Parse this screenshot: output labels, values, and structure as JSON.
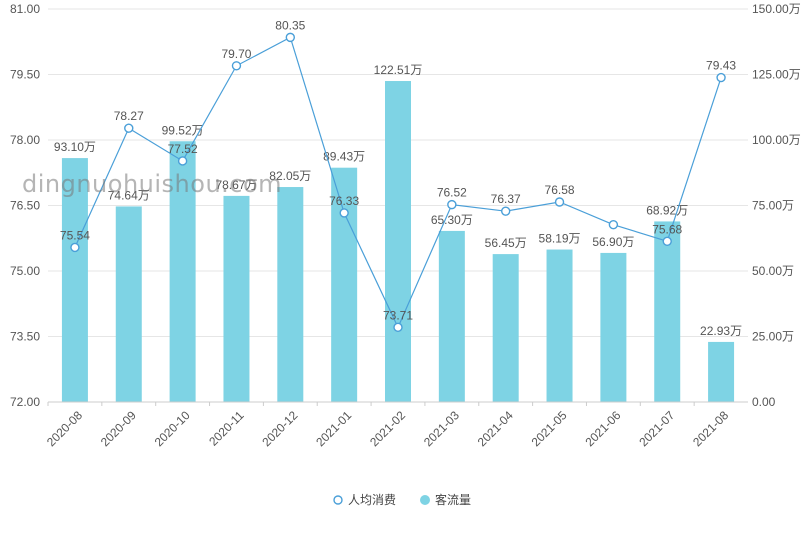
{
  "chart_data": {
    "type": "bar+line",
    "categories": [
      "2020-08",
      "2020-09",
      "2020-10",
      "2020-11",
      "2020-12",
      "2021-01",
      "2021-02",
      "2021-03",
      "2021-04",
      "2021-05",
      "2021-06",
      "2021-07",
      "2021-08"
    ],
    "series": [
      {
        "name": "人均消费",
        "type": "line",
        "axis": "left",
        "values": [
          75.54,
          78.27,
          77.52,
          79.7,
          80.35,
          76.33,
          73.71,
          76.52,
          76.37,
          76.58,
          76.06,
          75.68,
          79.43
        ],
        "labels": [
          "75.54",
          "78.27",
          "77.52",
          "79.70",
          "80.35",
          "76.33",
          "73.71",
          "76.52",
          "76.37",
          "76.58",
          "",
          "75.68",
          "79.43"
        ],
        "color": "#4a9fd8"
      },
      {
        "name": "客流量",
        "type": "bar",
        "axis": "right",
        "values": [
          93.1,
          74.64,
          99.52,
          78.67,
          82.05,
          89.43,
          122.51,
          65.3,
          56.45,
          58.19,
          56.9,
          68.92,
          22.93
        ],
        "labels": [
          "93.10万",
          "74.64万",
          "99.52万",
          "78.67万",
          "82.05万",
          "89.43万",
          "122.51万",
          "65.30万",
          "56.45万",
          "58.19万",
          "56.90万",
          "68.92万",
          "22.93万"
        ],
        "color": "#7ed3e4"
      }
    ],
    "y_left": {
      "range": [
        72.0,
        81.0
      ],
      "ticks": [
        "72.00",
        "73.50",
        "75.00",
        "76.50",
        "78.00",
        "79.50",
        "81.00"
      ]
    },
    "y_right": {
      "range": [
        0,
        150
      ],
      "ticks": [
        "0.00",
        "25.00万",
        "50.00万",
        "75.00万",
        "100.00万",
        "125.00万",
        "150.00万"
      ]
    },
    "grid": true,
    "legend_position": "bottom-center"
  },
  "watermark_text": "dingnuohuishou.com"
}
